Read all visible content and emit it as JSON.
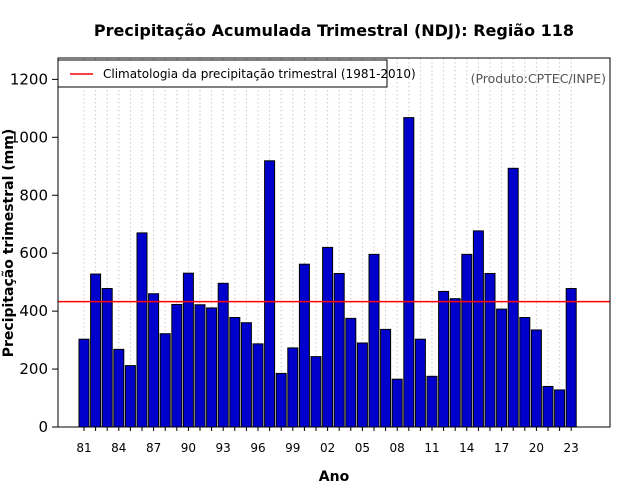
{
  "chart_data": {
    "type": "bar",
    "title": "Precipitação Acumulada Trimestral (NDJ): Região 118",
    "xlabel": "Ano",
    "ylabel": "Precipitação trimestral (mm)",
    "ylim": [
      0,
      1280
    ],
    "yticks": [
      0,
      200,
      400,
      600,
      800,
      1000,
      1200
    ],
    "categories": [
      "81",
      "82",
      "83",
      "84",
      "85",
      "86",
      "87",
      "88",
      "89",
      "90",
      "91",
      "92",
      "93",
      "94",
      "95",
      "96",
      "97",
      "98",
      "99",
      "00",
      "01",
      "02",
      "03",
      "04",
      "05",
      "06",
      "07",
      "08",
      "09",
      "10",
      "11",
      "12",
      "13",
      "14",
      "15",
      "16",
      "17",
      "18",
      "19",
      "20",
      "21",
      "22",
      "23"
    ],
    "xtick_labels": [
      "81",
      "84",
      "87",
      "90",
      "93",
      "96",
      "99",
      "02",
      "05",
      "08",
      "11",
      "14",
      "17",
      "20",
      "23"
    ],
    "values": [
      303,
      528,
      478,
      268,
      212,
      670,
      460,
      322,
      423,
      531,
      422,
      411,
      496,
      378,
      360,
      287,
      919,
      185,
      273,
      562,
      243,
      620,
      530,
      375,
      290,
      596,
      337,
      165,
      1068,
      303,
      175,
      468,
      443,
      596,
      677,
      530,
      407,
      893,
      378,
      335,
      140,
      128,
      478
    ],
    "bar_color": "#0000cd",
    "climatology": {
      "value": 433,
      "color": "#ff0000",
      "label": "Climatologia da precipitação trimestral (1981-2010)"
    },
    "legend_position": "top-left",
    "credit": "(Produto:CPTEC/INPE)"
  }
}
